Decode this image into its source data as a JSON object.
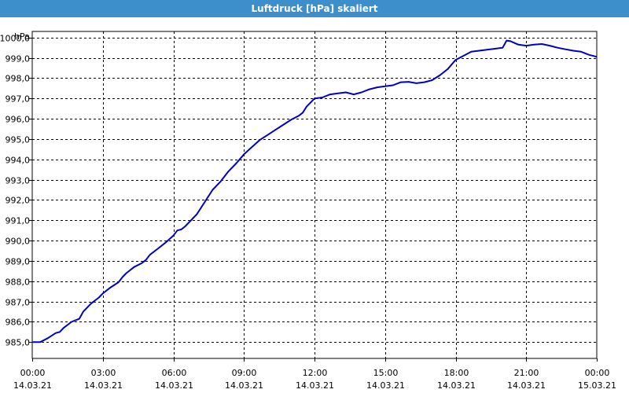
{
  "window": {
    "title": "Luftdruck [hPa] skaliert"
  },
  "chart_data": {
    "type": "line",
    "title": "Luftdruck [hPa] skaliert",
    "ylabel": "hPa",
    "ylim": [
      984.2,
      1000.3
    ],
    "xlim": [
      "2021-03-14T00:00",
      "2021-03-15T00:00"
    ],
    "grid": true,
    "line_color": "#0000c8",
    "yticks": [
      "985,0",
      "986,0",
      "987,0",
      "988,0",
      "989,0",
      "990,0",
      "991,0",
      "992,0",
      "993,0",
      "994,0",
      "995,0",
      "996,0",
      "997,0",
      "998,0",
      "999,0",
      "1000,0"
    ],
    "xticks": [
      {
        "time": "00:00",
        "date": "14.03.21"
      },
      {
        "time": "03:00",
        "date": "14.03.21"
      },
      {
        "time": "06:00",
        "date": "14.03.21"
      },
      {
        "time": "09:00",
        "date": "14.03.21"
      },
      {
        "time": "12:00",
        "date": "14.03.21"
      },
      {
        "time": "15:00",
        "date": "14.03.21"
      },
      {
        "time": "18:00",
        "date": "14.03.21"
      },
      {
        "time": "21:00",
        "date": "14.03.21"
      },
      {
        "time": "00:00",
        "date": "15.03.21"
      }
    ],
    "series": [
      {
        "x": [
          "00:00",
          "00:20",
          "00:40",
          "01:00",
          "01:10",
          "01:20",
          "01:40",
          "02:00",
          "02:10",
          "02:30",
          "02:50",
          "03:00",
          "03:20",
          "03:40",
          "03:50",
          "04:00",
          "04:20",
          "04:40",
          "04:50",
          "05:00",
          "05:20",
          "05:40",
          "06:00",
          "06:10",
          "06:20",
          "06:30",
          "06:40",
          "07:00",
          "07:20",
          "07:40",
          "08:00",
          "08:20",
          "08:40",
          "09:00",
          "09:20",
          "09:40",
          "10:00",
          "10:20",
          "10:40",
          "11:00",
          "11:20",
          "11:30",
          "11:40",
          "12:00",
          "12:20",
          "12:40",
          "13:00",
          "13:20",
          "13:40",
          "14:00",
          "14:20",
          "14:40",
          "15:00",
          "15:20",
          "15:40",
          "16:00",
          "16:20",
          "16:40",
          "17:00",
          "17:20",
          "17:40",
          "18:00",
          "18:10",
          "18:20",
          "18:40",
          "19:00",
          "19:20",
          "19:40",
          "20:00",
          "20:10",
          "20:20",
          "20:40",
          "21:00",
          "21:20",
          "21:40",
          "22:00",
          "22:20",
          "22:40",
          "23:00",
          "23:20",
          "23:40",
          "24:00"
        ],
        "y": [
          985.0,
          985.0,
          985.2,
          985.45,
          985.5,
          985.7,
          986.0,
          986.15,
          986.5,
          986.9,
          987.2,
          987.4,
          987.7,
          987.95,
          988.2,
          988.4,
          988.7,
          988.9,
          989.05,
          989.3,
          989.6,
          989.9,
          990.25,
          990.5,
          990.55,
          990.7,
          990.9,
          991.3,
          991.9,
          992.5,
          992.9,
          993.4,
          993.8,
          994.25,
          994.6,
          994.95,
          995.2,
          995.45,
          995.7,
          995.95,
          996.15,
          996.3,
          996.6,
          997.0,
          997.05,
          997.2,
          997.25,
          997.3,
          997.2,
          997.3,
          997.45,
          997.55,
          997.6,
          997.65,
          997.8,
          997.82,
          997.75,
          997.8,
          997.9,
          998.15,
          998.45,
          998.9,
          999.0,
          999.1,
          999.3,
          999.35,
          999.4,
          999.45,
          999.5,
          999.85,
          999.82,
          999.65,
          999.6,
          999.65,
          999.68,
          999.6,
          999.5,
          999.42,
          999.35,
          999.3,
          999.15,
          999.05
        ]
      }
    ]
  }
}
